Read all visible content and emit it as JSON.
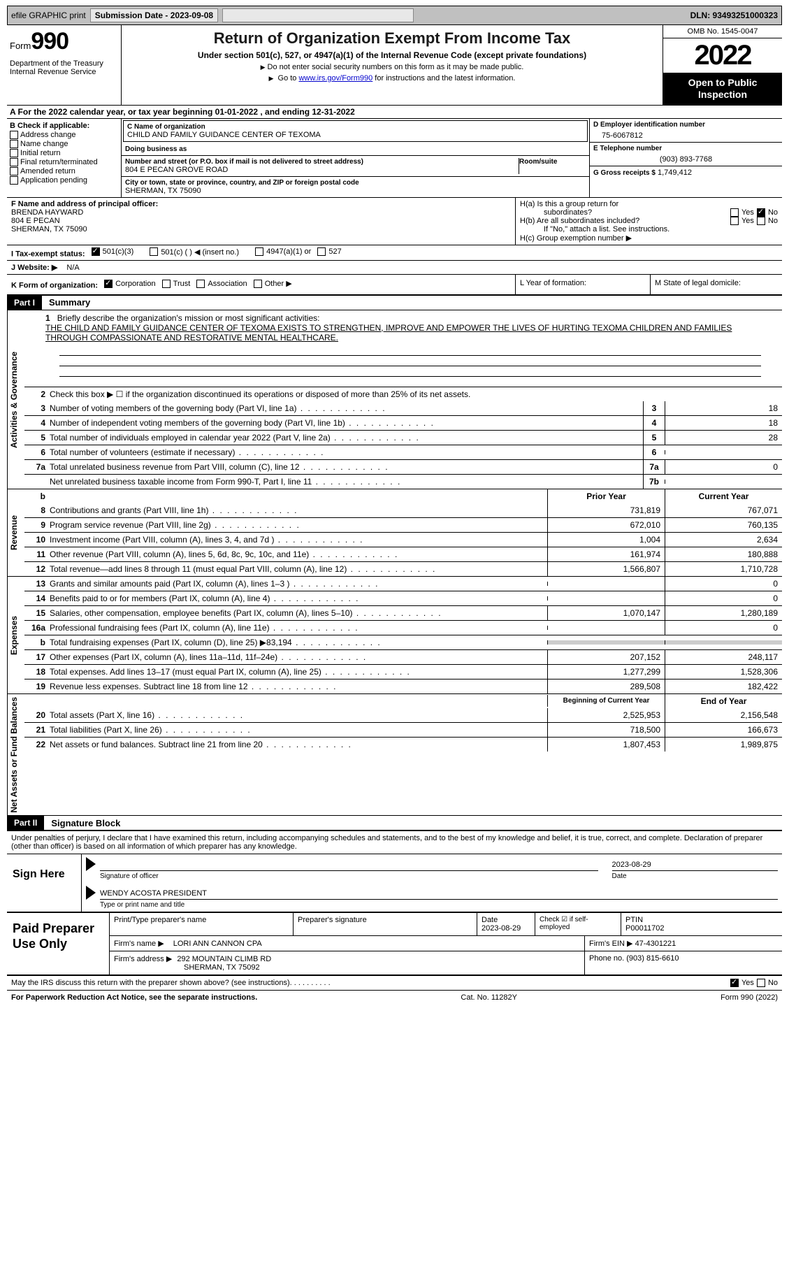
{
  "topbar": {
    "efile": "efile GRAPHIC print",
    "sub_label": "Submission Date - 2023-09-08",
    "dln": "DLN: 93493251000323"
  },
  "header": {
    "form_word": "Form",
    "form_num": "990",
    "title": "Return of Organization Exempt From Income Tax",
    "subtitle": "Under section 501(c), 527, or 4947(a)(1) of the Internal Revenue Code (except private foundations)",
    "note1": "Do not enter social security numbers on this form as it may be made public.",
    "note2_pre": "Go to ",
    "note2_link": "www.irs.gov/Form990",
    "note2_post": " for instructions and the latest information.",
    "dept": "Department of the Treasury\nInternal Revenue Service",
    "omb": "OMB No. 1545-0047",
    "year": "2022",
    "otp": "Open to Public Inspection"
  },
  "row_a": "A For the 2022 calendar year, or tax year beginning 01-01-2022    , and ending 12-31-2022",
  "section_b": {
    "label": "B Check if applicable:",
    "opts": [
      "Address change",
      "Name change",
      "Initial return",
      "Final return/terminated",
      "Amended return",
      "Application pending"
    ]
  },
  "section_c": {
    "name_label": "C Name of organization",
    "name": "CHILD AND FAMILY GUIDANCE CENTER OF TEXOMA",
    "dba_label": "Doing business as",
    "dba": "",
    "addr_label": "Number and street (or P.O. box if mail is not delivered to street address)",
    "room_label": "Room/suite",
    "addr": "804 E PECAN GROVE ROAD",
    "city_label": "City or town, state or province, country, and ZIP or foreign postal code",
    "city": "SHERMAN, TX  75090"
  },
  "section_d": {
    "label": "D Employer identification number",
    "ein": "75-6067812",
    "phone_label": "E Telephone number",
    "phone": "(903) 893-7768",
    "gross_label": "G Gross receipts $",
    "gross": "1,749,412"
  },
  "section_f": {
    "label": "F  Name and address of principal officer:",
    "name": "BRENDA HAYWARD",
    "addr1": "804 E PECAN",
    "addr2": "SHERMAN, TX  75090"
  },
  "section_h": {
    "a1": "H(a)  Is this a group return for",
    "a2": "subordinates?",
    "b1": "H(b)  Are all subordinates included?",
    "b2": "If \"No,\" attach a list. See instructions.",
    "c": "H(c)  Group exemption number ▶"
  },
  "row_i": {
    "label": "I    Tax-exempt status:",
    "opt1": "501(c)(3)",
    "opt2": "501(c) (   ) ◀ (insert no.)",
    "opt3": "4947(a)(1) or",
    "opt4": "527"
  },
  "row_j": {
    "label": "J   Website: ▶",
    "val": "N/A"
  },
  "row_k": {
    "label": "K Form of organization:",
    "opts": [
      "Corporation",
      "Trust",
      "Association",
      "Other ▶"
    ]
  },
  "row_l": "L Year of formation:",
  "row_m": "M State of legal domicile:",
  "part1": {
    "label": "Part I",
    "title": "Summary"
  },
  "mission": {
    "num": "1",
    "label": "Briefly describe the organization's mission or most significant activities:",
    "text": "THE CHILD AND FAMILY GUIDANCE CENTER OF TEXOMA EXISTS TO STRENGTHEN, IMPROVE AND EMPOWER THE LIVES OF HURTING TEXOMA CHILDREN AND FAMILIES THROUGH COMPASSIONATE AND RESTORATIVE MENTAL HEALTHCARE."
  },
  "line2": "Check this box ▶ ☐  if the organization discontinued its operations or disposed of more than 25% of its net assets.",
  "gov_rows": [
    {
      "n": "3",
      "t": "Number of voting members of the governing body (Part VI, line 1a)",
      "box": "3",
      "v": "18"
    },
    {
      "n": "4",
      "t": "Number of independent voting members of the governing body (Part VI, line 1b)",
      "box": "4",
      "v": "18"
    },
    {
      "n": "5",
      "t": "Total number of individuals employed in calendar year 2022 (Part V, line 2a)",
      "box": "5",
      "v": "28"
    },
    {
      "n": "6",
      "t": "Total number of volunteers (estimate if necessary)",
      "box": "6",
      "v": ""
    },
    {
      "n": "7a",
      "t": "Total unrelated business revenue from Part VIII, column (C), line 12",
      "box": "7a",
      "v": "0"
    },
    {
      "n": "",
      "t": "Net unrelated business taxable income from Form 990-T, Part I, line 11",
      "box": "7b",
      "v": ""
    }
  ],
  "py_header": "Prior Year",
  "cy_header": "Current Year",
  "rev_rows": [
    {
      "n": "8",
      "t": "Contributions and grants (Part VIII, line 1h)",
      "py": "731,819",
      "cy": "767,071"
    },
    {
      "n": "9",
      "t": "Program service revenue (Part VIII, line 2g)",
      "py": "672,010",
      "cy": "760,135"
    },
    {
      "n": "10",
      "t": "Investment income (Part VIII, column (A), lines 3, 4, and 7d )",
      "py": "1,004",
      "cy": "2,634"
    },
    {
      "n": "11",
      "t": "Other revenue (Part VIII, column (A), lines 5, 6d, 8c, 9c, 10c, and 11e)",
      "py": "161,974",
      "cy": "180,888"
    },
    {
      "n": "12",
      "t": "Total revenue—add lines 8 through 11 (must equal Part VIII, column (A), line 12)",
      "py": "1,566,807",
      "cy": "1,710,728"
    }
  ],
  "exp_rows": [
    {
      "n": "13",
      "t": "Grants and similar amounts paid (Part IX, column (A), lines 1–3 )",
      "py": "",
      "cy": "0"
    },
    {
      "n": "14",
      "t": "Benefits paid to or for members (Part IX, column (A), line 4)",
      "py": "",
      "cy": "0"
    },
    {
      "n": "15",
      "t": "Salaries, other compensation, employee benefits (Part IX, column (A), lines 5–10)",
      "py": "1,070,147",
      "cy": "1,280,189"
    },
    {
      "n": "16a",
      "t": "Professional fundraising fees (Part IX, column (A), line 11e)",
      "py": "",
      "cy": "0"
    },
    {
      "n": "b",
      "t": "Total fundraising expenses (Part IX, column (D), line 25) ▶83,194",
      "py": "shaded",
      "cy": "shaded"
    },
    {
      "n": "17",
      "t": "Other expenses (Part IX, column (A), lines 11a–11d, 11f–24e)",
      "py": "207,152",
      "cy": "248,117"
    },
    {
      "n": "18",
      "t": "Total expenses. Add lines 13–17 (must equal Part IX, column (A), line 25)",
      "py": "1,277,299",
      "cy": "1,528,306"
    },
    {
      "n": "19",
      "t": "Revenue less expenses. Subtract line 18 from line 12",
      "py": "289,508",
      "cy": "182,422"
    }
  ],
  "na_header_l": "Beginning of Current Year",
  "na_header_r": "End of Year",
  "na_rows": [
    {
      "n": "20",
      "t": "Total assets (Part X, line 16)",
      "py": "2,525,953",
      "cy": "2,156,548"
    },
    {
      "n": "21",
      "t": "Total liabilities (Part X, line 26)",
      "py": "718,500",
      "cy": "166,673"
    },
    {
      "n": "22",
      "t": "Net assets or fund balances. Subtract line 21 from line 20",
      "py": "1,807,453",
      "cy": "1,989,875"
    }
  ],
  "part2": {
    "label": "Part II",
    "title": "Signature Block"
  },
  "penalty": "Under penalties of perjury, I declare that I have examined this return, including accompanying schedules and statements, and to the best of my knowledge and belief, it is true, correct, and complete. Declaration of preparer (other than officer) is based on all information of which preparer has any knowledge.",
  "sign": {
    "left": "Sign Here",
    "date": "2023-08-29",
    "sig_label": "Signature of officer",
    "date_label": "Date",
    "name": "WENDY ACOSTA PRESIDENT",
    "name_label": "Type or print name and title"
  },
  "paid": {
    "left": "Paid Preparer Use Only",
    "h1": "Print/Type preparer's name",
    "h2": "Preparer's signature",
    "h3": "Date",
    "h3v": "2023-08-29",
    "h4": "Check ☑ if self-employed",
    "h5": "PTIN",
    "h5v": "P00011702",
    "firm_label": "Firm's name    ▶",
    "firm": "LORI ANN CANNON CPA",
    "ein_label": "Firm's EIN ▶",
    "ein": "47-4301221",
    "addr_label": "Firm's address ▶",
    "addr1": "292 MOUNTAIN CLIMB RD",
    "addr2": "SHERMAN, TX  75092",
    "phone_label": "Phone no.",
    "phone": "(903) 815-6610"
  },
  "discuss": "May the IRS discuss this return with the preparer shown above? (see instructions)",
  "bottom": {
    "left": "For Paperwork Reduction Act Notice, see the separate instructions.",
    "mid": "Cat. No. 11282Y",
    "right": "Form 990 (2022)"
  },
  "sidelabels": {
    "gov": "Activities & Governance",
    "rev": "Revenue",
    "exp": "Expenses",
    "na": "Net Assets or Fund Balances"
  }
}
